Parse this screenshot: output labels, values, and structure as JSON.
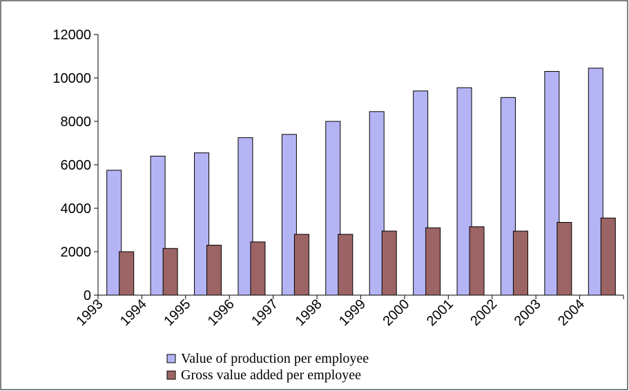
{
  "chart_data": {
    "type": "bar",
    "categories": [
      "1993",
      "1994",
      "1995",
      "1996",
      "1997",
      "1998",
      "1999",
      "2000",
      "2001",
      "2002",
      "2003",
      "2004"
    ],
    "series": [
      {
        "name": "Value of production per employee",
        "color": "#b4b4f5",
        "values": [
          5750,
          6400,
          6550,
          7250,
          7400,
          8000,
          8450,
          9400,
          9550,
          9100,
          10300,
          10450
        ]
      },
      {
        "name": "Gross value added per employee",
        "color": "#9c6464",
        "values": [
          2000,
          2150,
          2300,
          2450,
          2800,
          2800,
          2950,
          3100,
          3150,
          2950,
          3350,
          3550
        ]
      }
    ],
    "ylim": [
      0,
      12000
    ],
    "yticks": [
      0,
      2000,
      4000,
      6000,
      8000,
      10000,
      12000
    ],
    "grid": false,
    "legend": "bottom"
  }
}
